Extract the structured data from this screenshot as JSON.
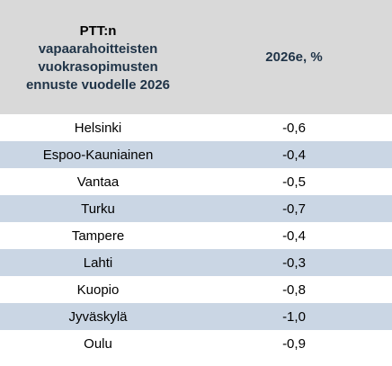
{
  "header": {
    "title_line1": "PTT:n",
    "title_line2": "vapaarahoitteisten",
    "title_line3": "vuokrasopimusten",
    "title_line4": "ennuste vuodelle 2026",
    "value_column": "2026e, %"
  },
  "colors": {
    "header_bg": "#d9d9d9",
    "shaded_row": "#cad6e4",
    "header_text": "#1f3347"
  },
  "rows": [
    {
      "city": "Helsinki",
      "value": "-0,6"
    },
    {
      "city": "Espoo-Kauniainen",
      "value": "-0,4"
    },
    {
      "city": "Vantaa",
      "value": "-0,5"
    },
    {
      "city": "Turku",
      "value": "-0,7"
    },
    {
      "city": "Tampere",
      "value": "-0,4"
    },
    {
      "city": "Lahti",
      "value": "-0,3"
    },
    {
      "city": "Kuopio",
      "value": "-0,8"
    },
    {
      "city": "Jyväskylä",
      "value": "-1,0"
    },
    {
      "city": "Oulu",
      "value": "-0,9"
    }
  ]
}
